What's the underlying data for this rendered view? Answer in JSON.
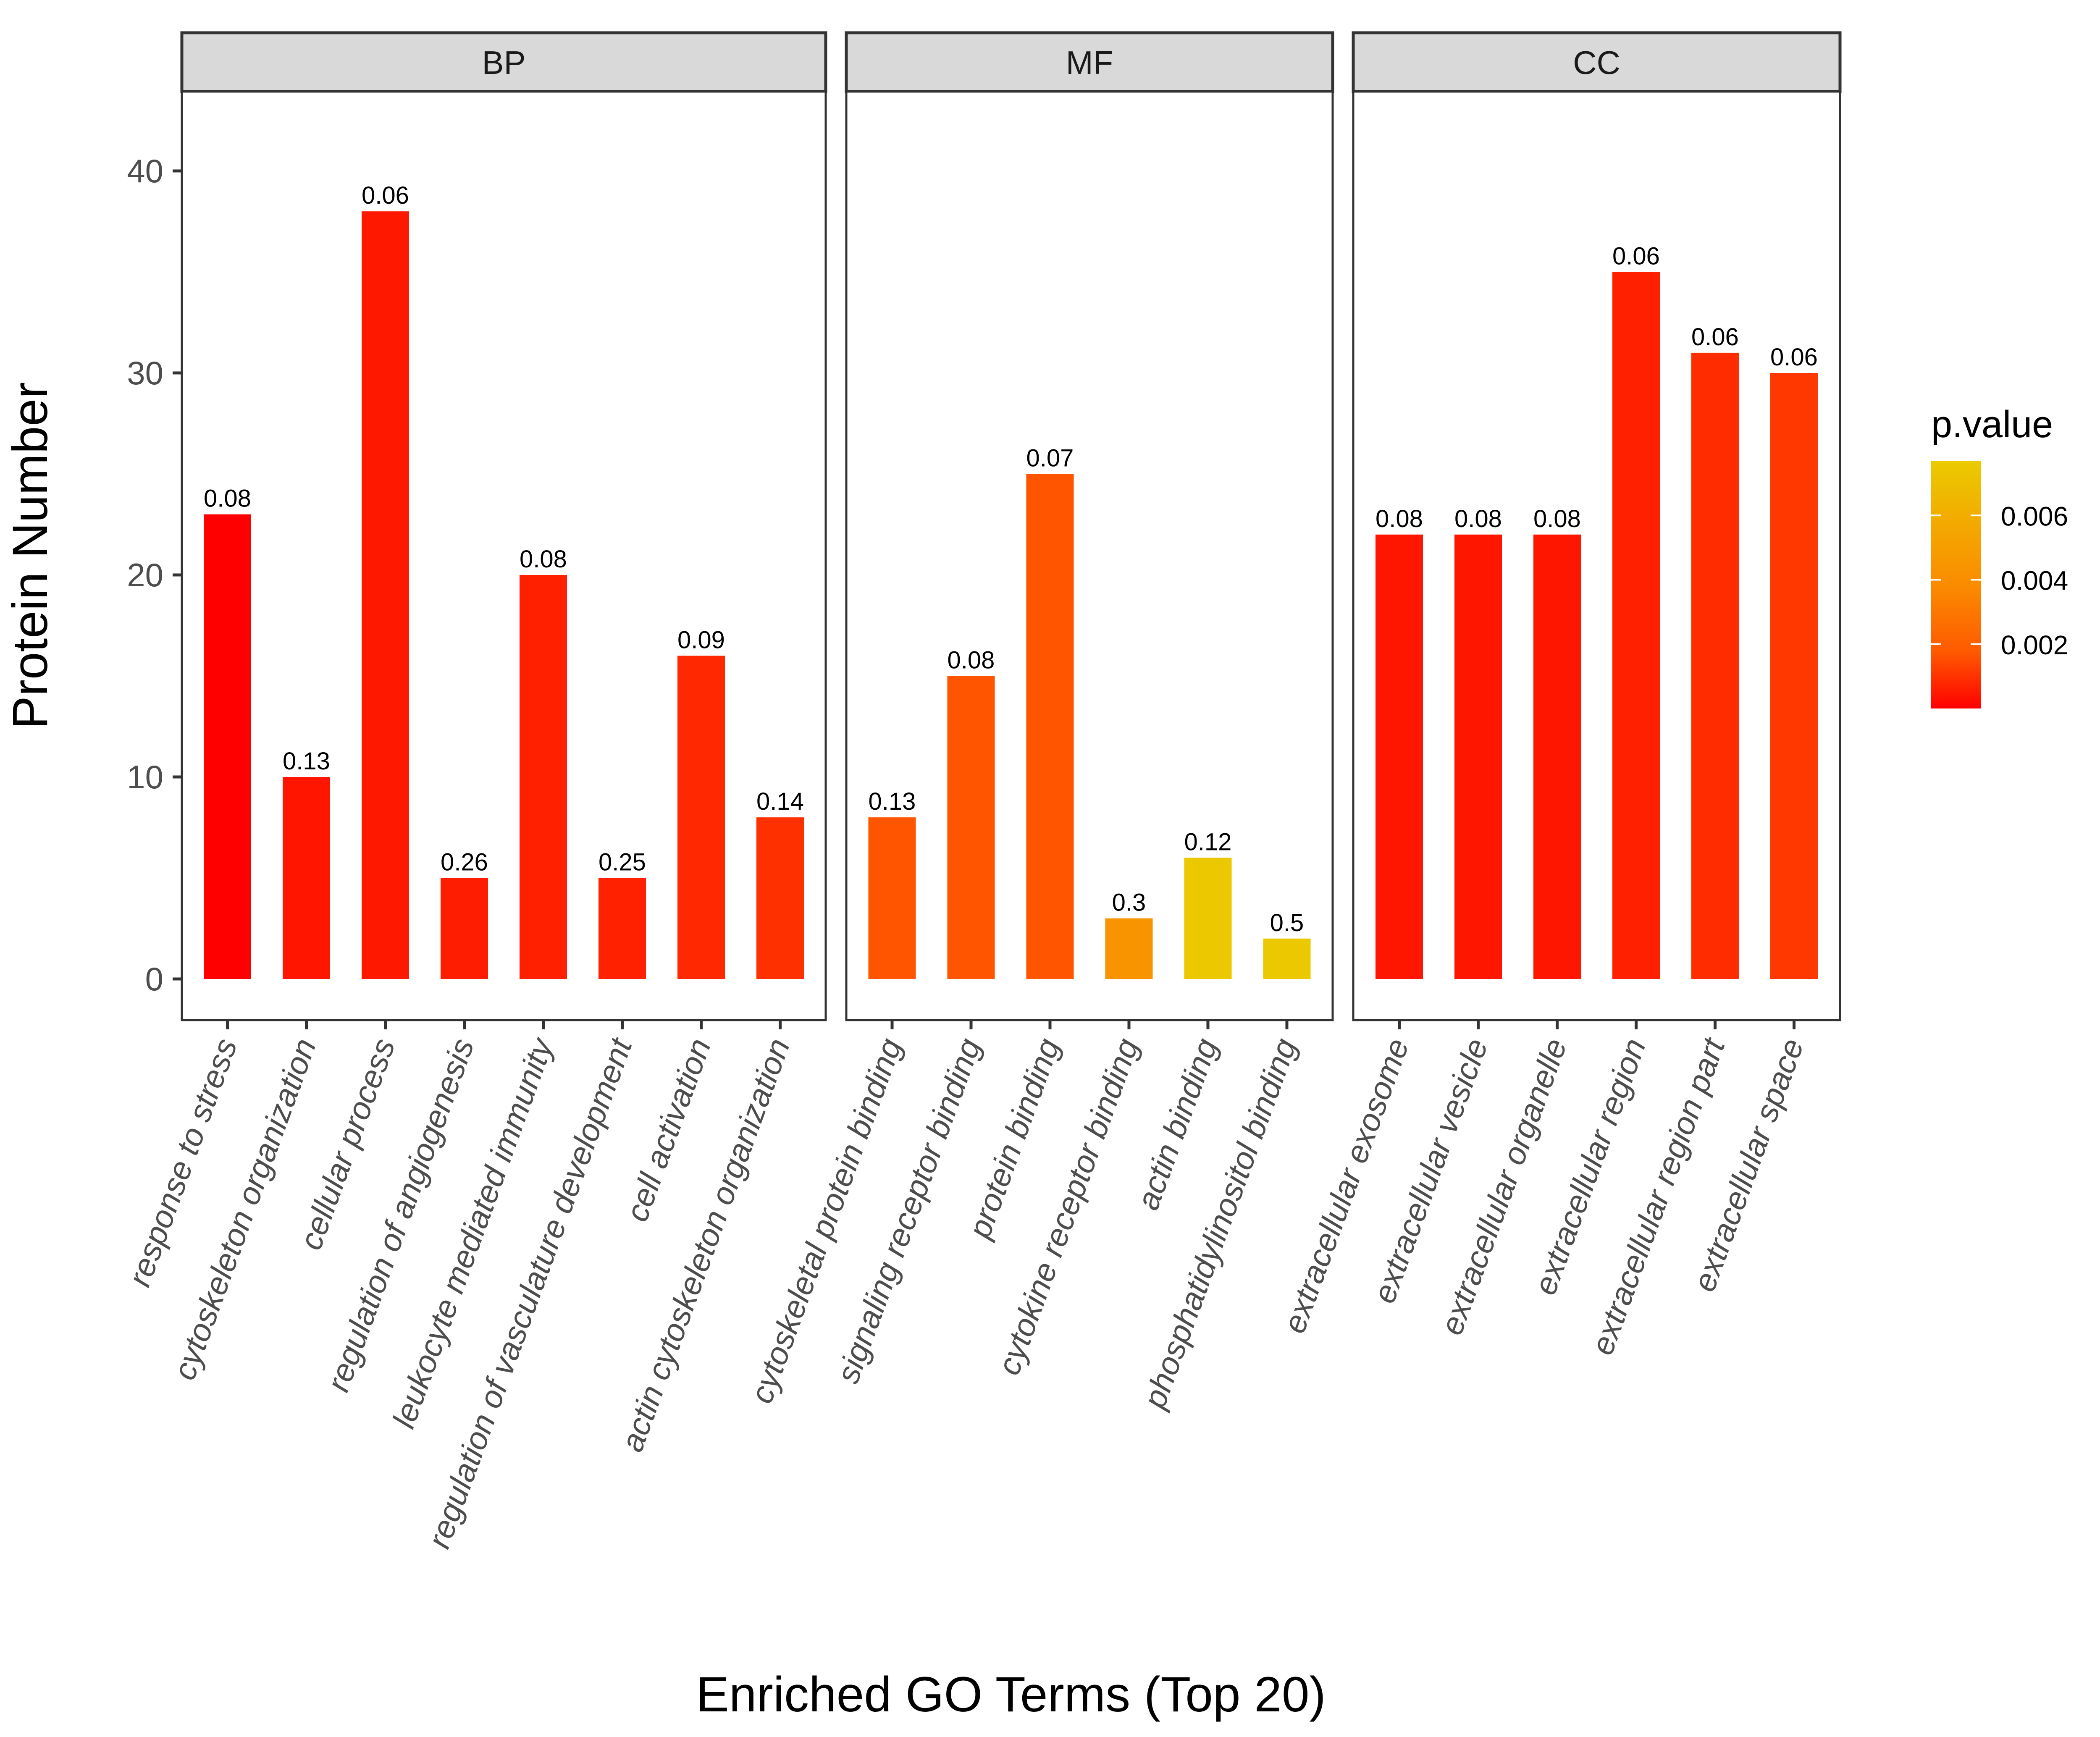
{
  "chart_data": {
    "type": "bar",
    "faceted": true,
    "xlabel": "Enriched GO Terms (Top 20)",
    "ylabel": "Protein Number",
    "ylim": [
      -2.04,
      43.93
    ],
    "yticks": [
      0,
      10,
      20,
      30,
      40
    ],
    "ytick_labels": [
      "0",
      "10",
      "20",
      "30",
      "40"
    ],
    "grid": false,
    "legend": {
      "title": "p.value",
      "type": "colorbar",
      "placement": "right",
      "range": [
        0.0,
        0.0077
      ],
      "ticks": [
        0.002,
        0.004,
        0.006
      ],
      "tick_labels": [
        "0.002",
        "0.004",
        "0.006"
      ],
      "colors": {
        "low": "#FF0000",
        "mid1": "#FF5A00",
        "mid2": "#FA8C00",
        "mid3": "#F2AC00",
        "high": "#EBCB00"
      }
    },
    "facets": [
      {
        "name": "BP",
        "categories": [
          "response to stress",
          "cytoskeleton organization",
          "cellular process",
          "regulation of angiogenesis",
          "leukocyte mediated immunity",
          "regulation of vasculature development",
          "cell activation",
          "actin cytoskeleton organization"
        ],
        "values": [
          23,
          10,
          38,
          5,
          20,
          5,
          16,
          8
        ],
        "labels": [
          "0.08",
          "0.13",
          "0.06",
          "0.26",
          "0.08",
          "0.25",
          "0.09",
          "0.14"
        ],
        "colors": [
          "#FF0000",
          "#FF1500",
          "#FF1800",
          "#FF1D00",
          "#FF2000",
          "#FF2100",
          "#FF2800",
          "#FF3000"
        ]
      },
      {
        "name": "MF",
        "categories": [
          "cytoskeletal protein binding",
          "signaling receptor binding",
          "protein binding",
          "cytokine receptor binding",
          "actin binding",
          "phosphatidylinositol binding"
        ],
        "values": [
          8,
          15,
          25,
          3,
          6,
          2
        ],
        "labels": [
          "0.13",
          "0.08",
          "0.07",
          "0.3",
          "0.12",
          "0.5"
        ],
        "colors": [
          "#FF5500",
          "#FF5500",
          "#FF5500",
          "#F79400",
          "#EBC800",
          "#EBC800"
        ]
      },
      {
        "name": "CC",
        "categories": [
          "extracellular exosome",
          "extracellular vesicle",
          "extracellular organelle",
          "extracellular region",
          "extracellular region part",
          "extracellular space"
        ],
        "values": [
          22,
          22,
          22,
          35,
          31,
          30
        ],
        "labels": [
          "0.08",
          "0.08",
          "0.08",
          "0.06",
          "0.06",
          "0.06"
        ],
        "colors": [
          "#FF1600",
          "#FF1600",
          "#FF1600",
          "#FF2000",
          "#FF2C00",
          "#FF3800"
        ]
      }
    ]
  }
}
